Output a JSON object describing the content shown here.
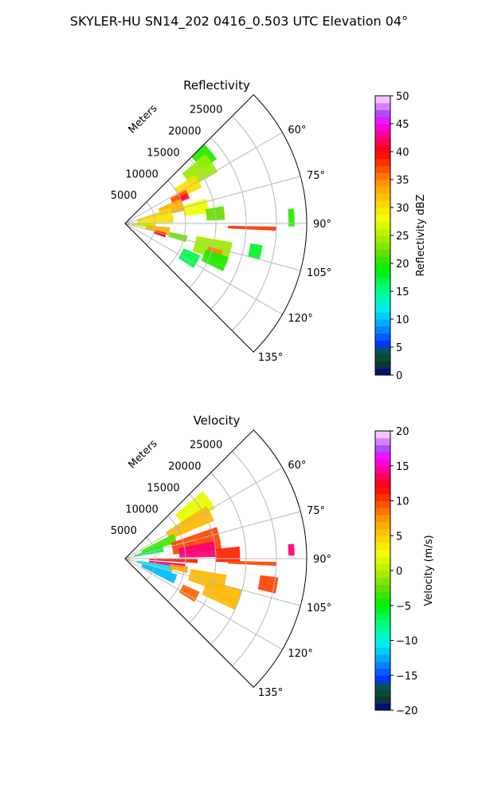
{
  "figure": {
    "suptitle": "SKYLER-HU  SN14_202  0416_0.503 UTC Elevation 04°"
  },
  "chart_data": [
    {
      "type": "heatmap",
      "subtype": "polar-sector-radar-ppi",
      "title": "Reflectivity",
      "range_label": "Meters",
      "range_ticks": [
        "5000",
        "10000",
        "15000",
        "20000",
        "25000"
      ],
      "angle_ticks": [
        "60°",
        "75°",
        "90°",
        "105°",
        "120°",
        "135°"
      ],
      "theta_range_deg": [
        45,
        135
      ],
      "r_range": [
        0,
        30000
      ],
      "grid": true,
      "colorbar": {
        "label": "Reflectivity dBZ",
        "ticks": [
          "0",
          "5",
          "10",
          "15",
          "20",
          "25",
          "30",
          "35",
          "40",
          "45",
          "50"
        ],
        "range": [
          0,
          50
        ]
      },
      "cells": [
        {
          "az": 50,
          "r": 17000,
          "dr": 3000,
          "daz": 10,
          "value": 20
        },
        {
          "az": 55,
          "r": 15000,
          "dr": 5000,
          "daz": 12,
          "value": 24
        },
        {
          "az": 60,
          "r": 12000,
          "dr": 4000,
          "daz": 10,
          "value": 30
        },
        {
          "az": 65,
          "r": 10000,
          "dr": 3000,
          "daz": 8,
          "value": 37
        },
        {
          "az": 66,
          "r": 10500,
          "dr": 1500,
          "daz": 4,
          "value": 42
        },
        {
          "az": 72,
          "r": 8000,
          "dr": 4000,
          "daz": 12,
          "value": 33
        },
        {
          "az": 78,
          "r": 12000,
          "dr": 4000,
          "daz": 10,
          "value": 28
        },
        {
          "az": 80,
          "r": 5000,
          "dr": 6000,
          "daz": 18,
          "value": 30
        },
        {
          "az": 84,
          "r": 15000,
          "dr": 3000,
          "daz": 8,
          "value": 22
        },
        {
          "az": 95,
          "r": 3000,
          "dr": 4000,
          "daz": 10,
          "value": 25
        },
        {
          "az": 100,
          "r": 5500,
          "dr": 4000,
          "daz": 10,
          "value": 33
        },
        {
          "az": 106,
          "r": 6000,
          "dr": 2000,
          "daz": 6,
          "value": 40
        },
        {
          "az": 104,
          "r": 9000,
          "dr": 3000,
          "daz": 6,
          "value": 22
        },
        {
          "az": 106,
          "r": 15000,
          "dr": 6000,
          "daz": 12,
          "value": 24
        },
        {
          "az": 108,
          "r": 15500,
          "dr": 2500,
          "daz": 5,
          "value": 35
        },
        {
          "az": 112,
          "r": 16000,
          "dr": 4000,
          "daz": 8,
          "value": 20
        },
        {
          "az": 118,
          "r": 12000,
          "dr": 3000,
          "daz": 10,
          "value": 17
        },
        {
          "az": 102,
          "r": 22000,
          "dr": 2000,
          "daz": 6,
          "value": 18
        },
        {
          "az": 92,
          "r": 21000,
          "dr": 8000,
          "daz": 1.5,
          "value": 38
        },
        {
          "az": 88,
          "r": 27500,
          "dr": 1000,
          "daz": 6,
          "value": 20
        }
      ]
    },
    {
      "type": "heatmap",
      "subtype": "polar-sector-radar-ppi",
      "title": "Velocity",
      "range_label": "Meters",
      "range_ticks": [
        "5000",
        "10000",
        "15000",
        "20000",
        "25000"
      ],
      "angle_ticks": [
        "60°",
        "75°",
        "90°",
        "105°",
        "120°",
        "135°"
      ],
      "theta_range_deg": [
        45,
        135
      ],
      "r_range": [
        0,
        30000
      ],
      "grid": true,
      "colorbar": {
        "label": "Velocity (m/s)",
        "ticks": [
          "−20",
          "−15",
          "−10",
          "−5",
          "0",
          "5",
          "10",
          "15",
          "20"
        ],
        "range": [
          -20,
          20
        ]
      },
      "cells": [
        {
          "az": 55,
          "r": 14000,
          "dr": 6000,
          "daz": 12,
          "value": 2
        },
        {
          "az": 62,
          "r": 12000,
          "dr": 8000,
          "daz": 10,
          "value": 6
        },
        {
          "az": 68,
          "r": 6000,
          "dr": 6000,
          "daz": 10,
          "value": -3
        },
        {
          "az": 75,
          "r": 4000,
          "dr": 5000,
          "daz": 10,
          "value": -6
        },
        {
          "az": 78,
          "r": 12000,
          "dr": 8000,
          "daz": 14,
          "value": 10
        },
        {
          "az": 84,
          "r": 12000,
          "dr": 6000,
          "daz": 10,
          "value": 14
        },
        {
          "az": 88,
          "r": 17000,
          "dr": 4000,
          "daz": 8,
          "value": 11
        },
        {
          "az": 92,
          "r": 8000,
          "dr": 8000,
          "daz": 3,
          "value": 11
        },
        {
          "az": 97,
          "r": 7000,
          "dr": 6000,
          "daz": 4,
          "value": 14
        },
        {
          "az": 104,
          "r": 5000,
          "dr": 6000,
          "daz": 10,
          "value": -11
        },
        {
          "az": 112,
          "r": 6000,
          "dr": 6000,
          "daz": 10,
          "value": -12
        },
        {
          "az": 100,
          "r": 9000,
          "dr": 3000,
          "daz": 6,
          "value": 7
        },
        {
          "az": 104,
          "r": 14000,
          "dr": 6000,
          "daz": 10,
          "value": 6
        },
        {
          "az": 110,
          "r": 17000,
          "dr": 6000,
          "daz": 10,
          "value": 6
        },
        {
          "az": 118,
          "r": 12000,
          "dr": 3000,
          "daz": 8,
          "value": 9
        },
        {
          "az": 92,
          "r": 21000,
          "dr": 8000,
          "daz": 1.5,
          "value": 10
        },
        {
          "az": 100,
          "r": 24000,
          "dr": 3000,
          "daz": 6,
          "value": 10
        },
        {
          "az": 87,
          "r": 27500,
          "dr": 1000,
          "daz": 4,
          "value": 14
        }
      ]
    }
  ]
}
